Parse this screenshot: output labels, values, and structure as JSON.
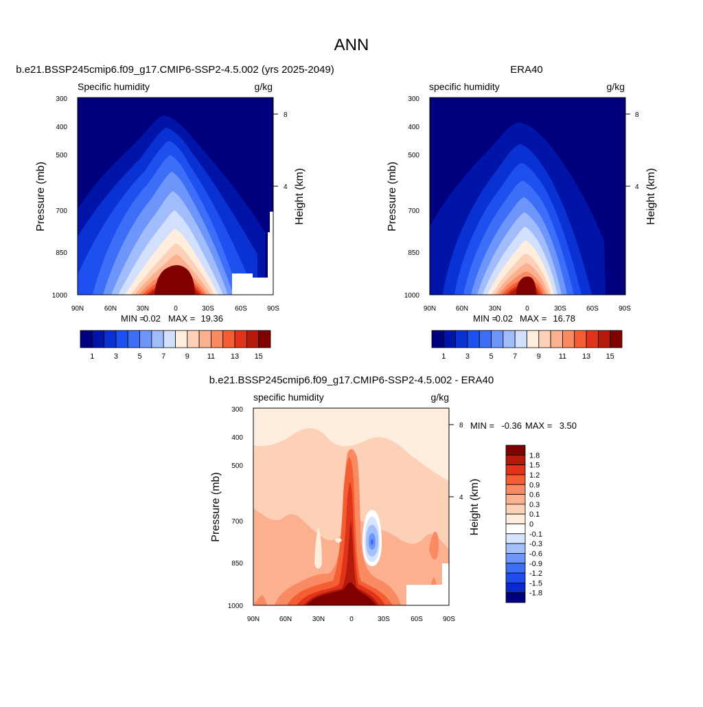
{
  "figure": {
    "title": "ANN"
  },
  "colors": {
    "humidity_palette": [
      "#00007f",
      "#0014a8",
      "#0a32d2",
      "#1e50f0",
      "#3c6ef8",
      "#6e96fa",
      "#a0bcfb",
      "#d2e0fd",
      "#ffeede",
      "#fdd0b8",
      "#fbb090",
      "#f98a62",
      "#f45e32",
      "#e0341a",
      "#b41a0c",
      "#800000"
    ],
    "diff_palette": [
      "#00007f",
      "#0a2acd",
      "#1e4ef0",
      "#3c6ef8",
      "#6e96fa",
      "#a4c0fb",
      "#d6e4fd",
      "#ffffff",
      "#ffeede",
      "#fdd0b8",
      "#fbb090",
      "#f98a62",
      "#f45e32",
      "#e0341a",
      "#b41a0c",
      "#800000"
    ]
  },
  "panels": {
    "model": {
      "title": "b.e21.BSSP245cmip6.f09_g17.CMIP6-SSP2-4.5.002 (yrs 2025-2049)",
      "left_label": "Specific humidity",
      "right_label": "g/kg",
      "ylabel": "Pressure (mb)",
      "ylabel_right": "Height (km)",
      "min_label": "MIN =",
      "min_value": "0.02",
      "max_label": "MAX =",
      "max_value": "19.36"
    },
    "obs": {
      "title": "ERA40",
      "left_label": "specific humidity",
      "right_label": "g/kg",
      "ylabel": "Pressure (mb)",
      "ylabel_right": "Height (km)",
      "min_label": "MIN =",
      "min_value": "0.02",
      "max_label": "MAX =",
      "max_value": "16.78"
    },
    "diff": {
      "title": "b.e21.BSSP245cmip6.f09_g17.CMIP6-SSP2-4.5.002 - ERA40",
      "left_label": "specific humidity",
      "right_label": "g/kg",
      "ylabel": "Pressure (mb)",
      "ylabel_right": "Height (km)",
      "min_label": "MIN =",
      "min_value": "-0.36",
      "max_label": "MAX =",
      "max_value": "3.50"
    }
  },
  "axes": {
    "pressure_ticks": [
      "300",
      "400",
      "500",
      "700",
      "850",
      "1000"
    ],
    "latitude_ticks": [
      "90N",
      "60N",
      "30N",
      "0",
      "30S",
      "60S",
      "90S"
    ],
    "height_ticks": [
      "8",
      "4"
    ]
  },
  "colorbars": {
    "humidity_labels": [
      "1",
      "3",
      "5",
      "7",
      "9",
      "11",
      "13",
      "15"
    ],
    "diff_labels": [
      "1.8",
      "1.5",
      "1.2",
      "0.9",
      "0.6",
      "0.3",
      "0.1",
      "0",
      "-0.1",
      "-0.3",
      "-0.6",
      "-0.9",
      "-1.2",
      "-1.5",
      "-1.8"
    ]
  },
  "chart_data": [
    {
      "type": "heatmap",
      "title": "b.e21.BSSP245cmip6.f09_g17.CMIP6-SSP2-4.5.002 (yrs 2025-2049)",
      "x_ticks": [
        "90N",
        "60N",
        "30N",
        "0",
        "30S",
        "60S",
        "90S"
      ],
      "xlim": [
        90,
        -90
      ],
      "y_ticks": [
        300,
        400,
        500,
        700,
        850,
        1000
      ],
      "ylim": [
        1000,
        300
      ],
      "y_scale": "log",
      "ylabel": "Pressure (mb)",
      "ylabel_right": "Height (km)",
      "units": "g/kg",
      "levels": [
        1,
        2,
        3,
        4,
        5,
        6,
        7,
        8,
        9,
        10,
        11,
        12,
        13,
        14,
        15
      ],
      "field_min": 0.02,
      "field_max": 19.36
    },
    {
      "type": "heatmap",
      "title": "ERA40",
      "x_ticks": [
        "90N",
        "60N",
        "30N",
        "0",
        "30S",
        "60S",
        "90S"
      ],
      "xlim": [
        90,
        -90
      ],
      "y_ticks": [
        300,
        400,
        500,
        700,
        850,
        1000
      ],
      "ylim": [
        1000,
        300
      ],
      "y_scale": "log",
      "ylabel": "Pressure (mb)",
      "ylabel_right": "Height (km)",
      "units": "g/kg",
      "levels": [
        1,
        2,
        3,
        4,
        5,
        6,
        7,
        8,
        9,
        10,
        11,
        12,
        13,
        14,
        15
      ],
      "field_min": 0.02,
      "field_max": 16.78
    },
    {
      "type": "heatmap",
      "title": "b.e21.BSSP245cmip6.f09_g17.CMIP6-SSP2-4.5.002 - ERA40",
      "x_ticks": [
        "90N",
        "60N",
        "30N",
        "0",
        "30S",
        "60S",
        "90S"
      ],
      "xlim": [
        90,
        -90
      ],
      "y_ticks": [
        300,
        400,
        500,
        700,
        850,
        1000
      ],
      "ylim": [
        1000,
        300
      ],
      "y_scale": "log",
      "ylabel": "Pressure (mb)",
      "ylabel_right": "Height (km)",
      "units": "g/kg",
      "levels": [
        -1.8,
        -1.5,
        -1.2,
        -0.9,
        -0.6,
        -0.3,
        -0.1,
        0,
        0.1,
        0.3,
        0.6,
        0.9,
        1.2,
        1.5,
        1.8
      ],
      "field_min": -0.36,
      "field_max": 3.5
    }
  ]
}
